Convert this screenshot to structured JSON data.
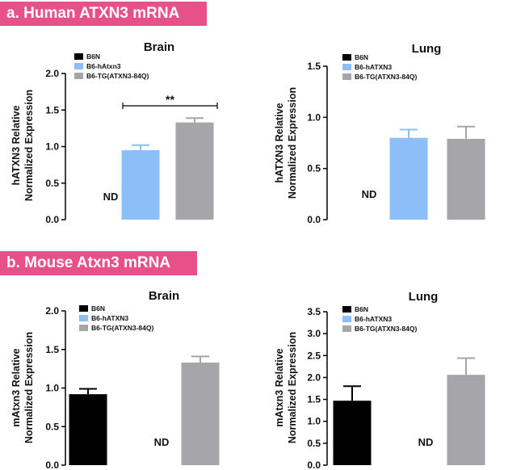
{
  "banners": {
    "a": "a. Human ATXN3 mRNA",
    "b": "b. Mouse Atxn3 mRNA"
  },
  "colors": {
    "B6N": "#000000",
    "hATXN3": "#8cbff7",
    "TG": "#a5a5aa"
  },
  "chart_data": [
    {
      "type": "bar",
      "title": "Brain",
      "ylabel": [
        "hATXN3 Relative",
        "Normalized Expression"
      ],
      "ylim": [
        0,
        2.0
      ],
      "yticks": [
        "0.0",
        "0.5",
        "1.0",
        "1.5",
        "2.0"
      ],
      "legend": [
        "B6N",
        "B6-hAtxn3",
        "B6-TG(ATXN3-84Q)"
      ],
      "values": [
        null,
        0.95,
        1.33
      ],
      "errors": [
        null,
        0.07,
        0.06
      ],
      "annotations": [
        "ND"
      ],
      "significance": "**"
    },
    {
      "type": "bar",
      "title": "Lung",
      "ylabel": [
        "hATXN3 Relative",
        "Normalized Expression"
      ],
      "ylim": [
        0,
        1.5
      ],
      "yticks": [
        "0.0",
        "0.5",
        "1.0",
        "1.5"
      ],
      "legend": [
        "B6N",
        "B6-hATXN3",
        "B6-TG(ATXN3-84Q)"
      ],
      "values": [
        null,
        0.8,
        0.79
      ],
      "errors": [
        null,
        0.08,
        0.12
      ],
      "annotations": [
        "ND"
      ]
    },
    {
      "type": "bar",
      "title": "Brain",
      "ylabel": [
        "mAtxn3 Relative",
        "Normalized Expression"
      ],
      "ylim": [
        0,
        2.0
      ],
      "yticks": [
        "0.0",
        "0.5",
        "1.0",
        "1.5",
        "2.0"
      ],
      "legend": [
        "B6N",
        "B6-hATXN3",
        "B6-TG(ATXN3-84Q)"
      ],
      "values": [
        0.92,
        null,
        1.33
      ],
      "errors": [
        0.07,
        null,
        0.08
      ],
      "annotations": [
        "ND"
      ]
    },
    {
      "type": "bar",
      "title": "Lung",
      "ylabel": [
        "mAtxn3 Relative",
        "Normalized Expression"
      ],
      "ylim": [
        0,
        3.5
      ],
      "yticks": [
        "0.0",
        "0.5",
        "1.0",
        "1.5",
        "2.0",
        "2.5",
        "3.0",
        "3.5"
      ],
      "legend": [
        "B6N",
        "B6-hATXN3",
        "B6-TG(ATXN3-84Q)"
      ],
      "values": [
        1.47,
        null,
        2.06
      ],
      "errors": [
        0.33,
        null,
        0.38
      ],
      "annotations": [
        "ND"
      ]
    }
  ]
}
